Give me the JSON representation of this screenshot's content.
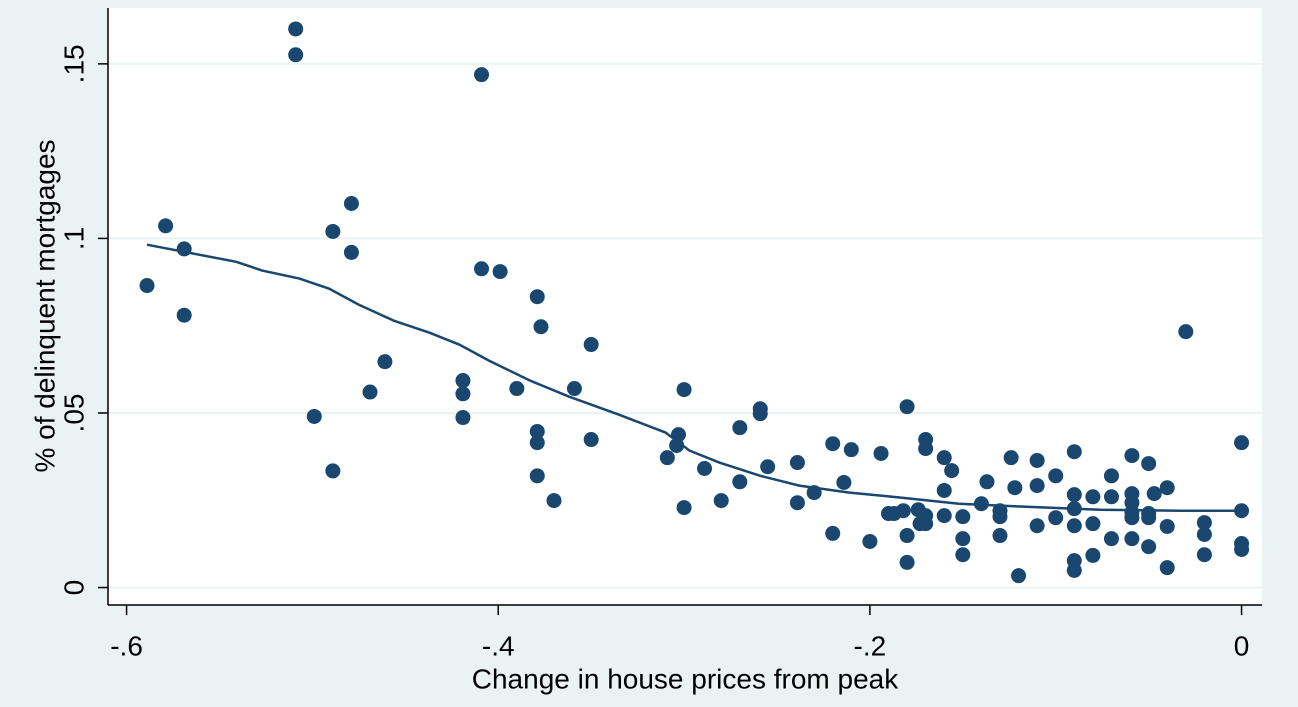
{
  "chart_data": {
    "type": "scatter",
    "x_label": "Change in house prices from peak",
    "y_label": "% of delinquent mortgages",
    "xlim": [
      -0.61,
      0.011
    ],
    "ylim": [
      -0.005,
      0.166
    ],
    "xticks": [
      {
        "value": -0.6,
        "label": "-.6"
      },
      {
        "value": -0.4,
        "label": "-.4"
      },
      {
        "value": -0.2,
        "label": "-.2"
      },
      0
    ],
    "yticks": [
      0,
      {
        "value": 0.05,
        "label": ".05"
      },
      {
        "value": 0.1,
        "label": ".1"
      },
      {
        "value": 0.15,
        "label": ".15"
      }
    ],
    "grid": true,
    "series": [
      {
        "type": "scatter",
        "color": "#1a476f",
        "x": [
          -0.589,
          -0.579,
          -0.569,
          -0.569,
          -0.509,
          -0.509,
          -0.499,
          -0.489,
          -0.489,
          -0.479,
          -0.479,
          -0.469,
          -0.461,
          -0.419,
          -0.419,
          -0.419,
          -0.409,
          -0.409,
          -0.399,
          -0.39,
          -0.379,
          -0.379,
          -0.379,
          -0.379,
          -0.377,
          -0.37,
          -0.359,
          -0.35,
          -0.35,
          -0.309,
          -0.304,
          -0.303,
          -0.3,
          -0.3,
          -0.289,
          -0.28,
          -0.27,
          -0.27,
          -0.259,
          -0.259,
          -0.255,
          -0.239,
          -0.239,
          -0.23,
          -0.22,
          -0.22,
          -0.214,
          -0.21,
          -0.2,
          -0.194,
          -0.19,
          -0.187,
          -0.182,
          -0.18,
          -0.18,
          -0.18,
          -0.174,
          -0.173,
          -0.17,
          -0.17,
          -0.17,
          -0.17,
          -0.16,
          -0.16,
          -0.16,
          -0.156,
          -0.15,
          -0.15,
          -0.15,
          -0.14,
          -0.137,
          -0.13,
          -0.13,
          -0.13,
          -0.124,
          -0.122,
          -0.12,
          -0.11,
          -0.11,
          -0.11,
          -0.1,
          -0.1,
          -0.09,
          -0.09,
          -0.09,
          -0.09,
          -0.09,
          -0.09,
          -0.08,
          -0.08,
          -0.08,
          -0.07,
          -0.07,
          -0.07,
          -0.059,
          -0.059,
          -0.059,
          -0.059,
          -0.059,
          -0.059,
          -0.05,
          -0.05,
          -0.05,
          -0.05,
          -0.047,
          -0.04,
          -0.04,
          -0.04,
          -0.03,
          -0.02,
          -0.02,
          -0.02,
          0,
          0,
          0,
          0
        ],
        "values": [
          0.0865,
          0.1036,
          0.097,
          0.078,
          0.16,
          0.1526,
          0.049,
          0.0334,
          0.102,
          0.11,
          0.096,
          0.056,
          0.0647,
          0.0593,
          0.0555,
          0.0487,
          0.1469,
          0.0913,
          0.0905,
          0.057,
          0.0833,
          0.0447,
          0.0415,
          0.032,
          0.0747,
          0.0249,
          0.057,
          0.0696,
          0.0424,
          0.0372,
          0.0407,
          0.0438,
          0.0567,
          0.0229,
          0.0341,
          0.0249,
          0.0303,
          0.0458,
          0.0512,
          0.0498,
          0.0346,
          0.0358,
          0.0243,
          0.0272,
          0.0412,
          0.0155,
          0.0301,
          0.0395,
          0.0132,
          0.0384,
          0.0212,
          0.0212,
          0.022,
          0.0149,
          0.0072,
          0.0518,
          0.0223,
          0.0183,
          0.0424,
          0.0398,
          0.0206,
          0.0183,
          0.0372,
          0.0278,
          0.0206,
          0.0335,
          0.0203,
          0.014,
          0.0094,
          0.024,
          0.0303,
          0.022,
          0.0203,
          0.0149,
          0.0372,
          0.0286,
          0.0034,
          0.0364,
          0.0292,
          0.0177,
          0.032,
          0.02,
          0.0389,
          0.0266,
          0.0226,
          0.0177,
          0.0077,
          0.0049,
          0.026,
          0.0183,
          0.0092,
          0.032,
          0.026,
          0.014,
          0.0378,
          0.0269,
          0.0243,
          0.0215,
          0.02,
          0.014,
          0.0212,
          0.0355,
          0.02,
          0.0117,
          0.0269,
          0.0286,
          0.0175,
          0.0057,
          0.0733,
          0.0186,
          0.0152,
          0.0094,
          0.0415,
          0.022,
          0.0126,
          0.0109
        ]
      },
      {
        "type": "line",
        "color": "#1a476f",
        "x": [
          -0.589,
          -0.541,
          -0.527,
          -0.507,
          -0.491,
          -0.475,
          -0.456,
          -0.437,
          -0.421,
          -0.405,
          -0.383,
          -0.362,
          -0.335,
          -0.31,
          -0.297,
          -0.281,
          -0.259,
          -0.238,
          -0.211,
          -0.184,
          -0.152,
          -0.119,
          -0.076,
          -0.033,
          0
        ],
        "values": [
          0.0982,
          0.0933,
          0.0908,
          0.0885,
          0.0856,
          0.081,
          0.0764,
          0.073,
          0.0696,
          0.065,
          0.0593,
          0.0547,
          0.0495,
          0.0444,
          0.0392,
          0.0358,
          0.032,
          0.0292,
          0.0272,
          0.0258,
          0.024,
          0.0232,
          0.0223,
          0.022,
          0.022
        ]
      }
    ]
  }
}
